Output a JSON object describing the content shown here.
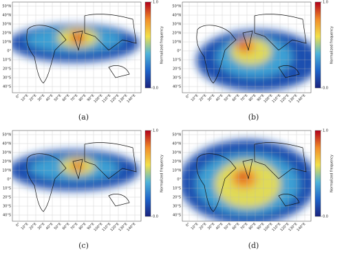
{
  "panels": [
    {
      "label": "(a)"
    },
    {
      "label": "(b)"
    },
    {
      "label": "(c)"
    },
    {
      "label": "(d)"
    }
  ],
  "lat_labels": [
    "50°N",
    "40°N",
    "30°N",
    "20°N",
    "10°N",
    "0°",
    "10°S",
    "20°S",
    "30°S",
    "40°S"
  ],
  "lon_labels": [
    "0°",
    "10°E",
    "20°E",
    "30°E",
    "40°E",
    "50°E",
    "60°E",
    "70°E",
    "80°E",
    "90°E",
    "100°E",
    "110°E",
    "120°E",
    "130°E",
    "140°E"
  ],
  "colorbar": {
    "label": "Normalized frequency",
    "ticks": [
      {
        "value": 0,
        "label": "0.0"
      },
      {
        "value": 1,
        "label": "1.0"
      }
    ],
    "lim": [
      0,
      1
    ]
  }
}
